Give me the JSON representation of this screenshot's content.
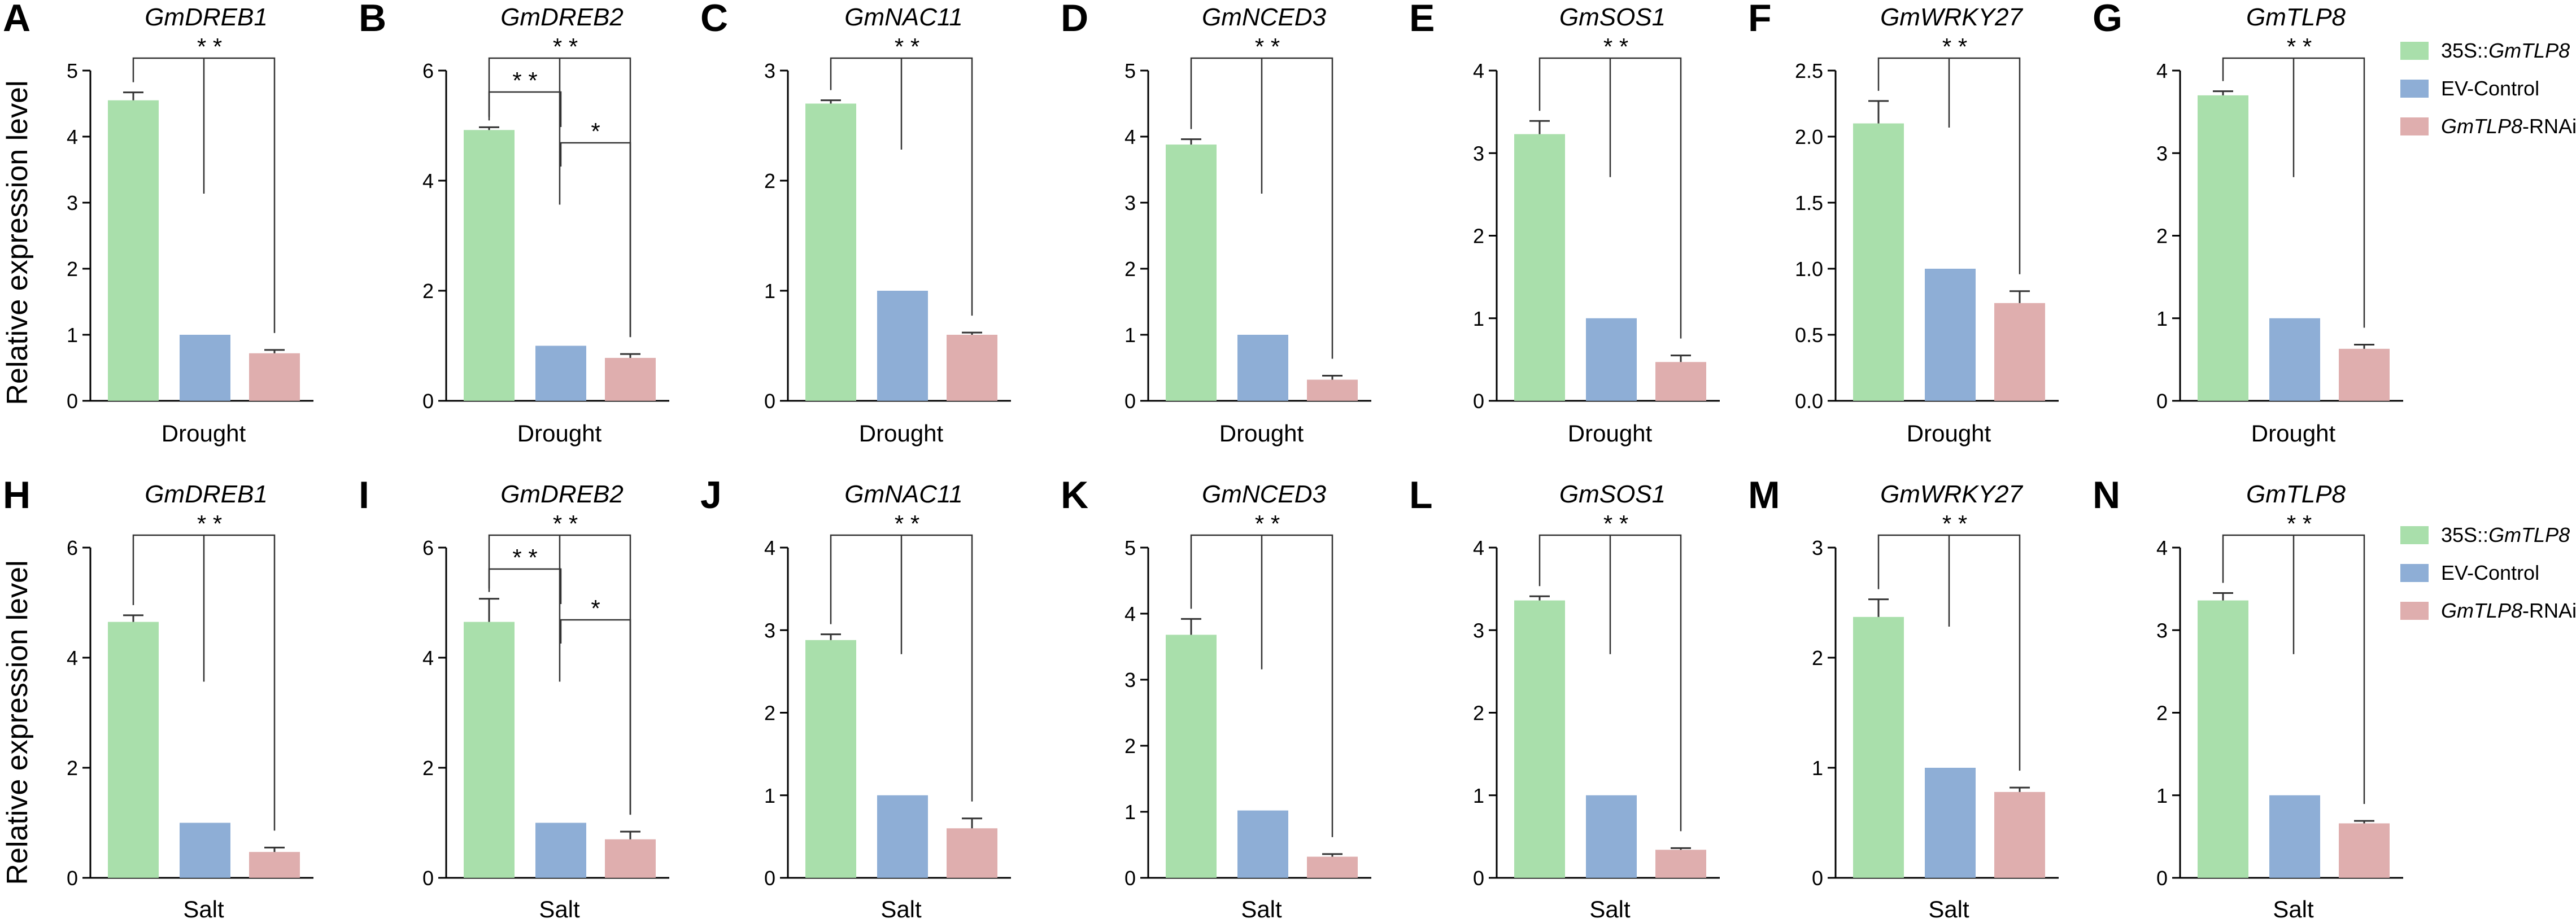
{
  "figure": {
    "y_axis_label": "Relative expression level",
    "legend": [
      {
        "prefix": "35S::",
        "gene": "GmTLP8",
        "suffix": "",
        "color": "#a9dfab"
      },
      {
        "prefix": "",
        "gene": "",
        "suffix": "EV-Control",
        "color": "#8eaed6"
      },
      {
        "prefix": "",
        "gene": "GmTLP8",
        "suffix": "-RNAi",
        "color": "#dfaeae"
      }
    ]
  },
  "chart_data": [
    {
      "panel": "A",
      "title": "GmDREB1",
      "type": "bar",
      "xlabel": "Drought",
      "ylim": [
        0,
        5
      ],
      "yticks": [
        "0",
        "1",
        "2",
        "3",
        "4",
        "5"
      ],
      "series": [
        {
          "name": "35S::GmTLP8",
          "values": [
            4.55
          ],
          "error": [
            0.12
          ]
        },
        {
          "name": "EV-Control",
          "values": [
            1.0
          ],
          "error": [
            0
          ]
        },
        {
          "name": "GmTLP8-RNAi",
          "values": [
            0.72
          ],
          "error": [
            0.05
          ]
        }
      ],
      "sig": [
        {
          "from": 0,
          "to": 2,
          "label": "* *"
        }
      ]
    },
    {
      "panel": "B",
      "title": "GmDREB2",
      "type": "bar",
      "xlabel": "Drought",
      "ylim": [
        0,
        6
      ],
      "yticks": [
        "0",
        "2",
        "4",
        "6"
      ],
      "series": [
        {
          "name": "35S::GmTLP8",
          "values": [
            4.92
          ],
          "error": [
            0.05
          ]
        },
        {
          "name": "EV-Control",
          "values": [
            1.0
          ],
          "error": [
            0
          ]
        },
        {
          "name": "GmTLP8-RNAi",
          "values": [
            0.78
          ],
          "error": [
            0.07
          ]
        }
      ],
      "sig": [
        {
          "from": 0,
          "to": 2,
          "label": "* *"
        },
        {
          "from": 0,
          "to": 1,
          "label": "* *"
        },
        {
          "from": 1,
          "to": 2,
          "label": "*"
        }
      ]
    },
    {
      "panel": "C",
      "title": "GmNAC11",
      "type": "bar",
      "xlabel": "Drought",
      "ylim": [
        0,
        3
      ],
      "yticks": [
        "0",
        "1",
        "2",
        "3"
      ],
      "series": [
        {
          "name": "35S::GmTLP8",
          "values": [
            2.7
          ],
          "error": [
            0.03
          ]
        },
        {
          "name": "EV-Control",
          "values": [
            1.0
          ],
          "error": [
            0
          ]
        },
        {
          "name": "GmTLP8-RNAi",
          "values": [
            0.6
          ],
          "error": [
            0.02
          ]
        }
      ],
      "sig": [
        {
          "from": 0,
          "to": 2,
          "label": "* *"
        }
      ]
    },
    {
      "panel": "D",
      "title": "GmNCED3",
      "type": "bar",
      "xlabel": "Drought",
      "ylim": [
        0,
        5
      ],
      "yticks": [
        "0",
        "1",
        "2",
        "3",
        "4",
        "5"
      ],
      "series": [
        {
          "name": "35S::GmTLP8",
          "values": [
            3.88
          ],
          "error": [
            0.08
          ]
        },
        {
          "name": "EV-Control",
          "values": [
            1.0
          ],
          "error": [
            0
          ]
        },
        {
          "name": "GmTLP8-RNAi",
          "values": [
            0.32
          ],
          "error": [
            0.06
          ]
        }
      ],
      "sig": [
        {
          "from": 0,
          "to": 2,
          "label": "* *"
        }
      ]
    },
    {
      "panel": "E",
      "title": "GmSOS1",
      "type": "bar",
      "xlabel": "Drought",
      "ylim": [
        0,
        4
      ],
      "yticks": [
        "0",
        "1",
        "2",
        "3",
        "4"
      ],
      "series": [
        {
          "name": "35S::GmTLP8",
          "values": [
            3.23
          ],
          "error": [
            0.16
          ]
        },
        {
          "name": "EV-Control",
          "values": [
            1.0
          ],
          "error": [
            0
          ]
        },
        {
          "name": "GmTLP8-RNAi",
          "values": [
            0.47
          ],
          "error": [
            0.08
          ]
        }
      ],
      "sig": [
        {
          "from": 0,
          "to": 2,
          "label": "* *"
        }
      ]
    },
    {
      "panel": "F",
      "title": "GmWRKY27",
      "type": "bar",
      "xlabel": "Drought",
      "ylim": [
        0,
        2.5
      ],
      "yticks": [
        "0.0",
        "0.5",
        "1.0",
        "1.5",
        "2.0",
        "2.5"
      ],
      "series": [
        {
          "name": "35S::GmTLP8",
          "values": [
            2.1
          ],
          "error": [
            0.17
          ]
        },
        {
          "name": "EV-Control",
          "values": [
            1.0
          ],
          "error": [
            0
          ]
        },
        {
          "name": "GmTLP8-RNAi",
          "values": [
            0.74
          ],
          "error": [
            0.09
          ]
        }
      ],
      "sig": [
        {
          "from": 0,
          "to": 2,
          "label": "* *"
        }
      ]
    },
    {
      "panel": "G",
      "title": "GmTLP8",
      "type": "bar",
      "xlabel": "Drought",
      "ylim": [
        0,
        4
      ],
      "yticks": [
        "0",
        "1",
        "2",
        "3",
        "4"
      ],
      "series": [
        {
          "name": "35S::GmTLP8",
          "values": [
            3.7
          ],
          "error": [
            0.05
          ]
        },
        {
          "name": "EV-Control",
          "values": [
            1.0
          ],
          "error": [
            0
          ]
        },
        {
          "name": "GmTLP8-RNAi",
          "values": [
            0.63
          ],
          "error": [
            0.05
          ]
        }
      ],
      "sig": [
        {
          "from": 0,
          "to": 2,
          "label": "* *"
        }
      ]
    },
    {
      "panel": "H",
      "title": "GmDREB1",
      "type": "bar",
      "xlabel": "Salt",
      "ylim": [
        0,
        6
      ],
      "yticks": [
        "0",
        "2",
        "4",
        "6"
      ],
      "series": [
        {
          "name": "35S::GmTLP8",
          "values": [
            4.65
          ],
          "error": [
            0.12
          ]
        },
        {
          "name": "EV-Control",
          "values": [
            1.0
          ],
          "error": [
            0
          ]
        },
        {
          "name": "GmTLP8-RNAi",
          "values": [
            0.47
          ],
          "error": [
            0.08
          ]
        }
      ],
      "sig": [
        {
          "from": 0,
          "to": 2,
          "label": "* *"
        }
      ]
    },
    {
      "panel": "I",
      "title": "GmDREB2",
      "type": "bar",
      "xlabel": "Salt",
      "ylim": [
        0,
        6
      ],
      "yticks": [
        "0",
        "2",
        "4",
        "6"
      ],
      "series": [
        {
          "name": "35S::GmTLP8",
          "values": [
            4.65
          ],
          "error": [
            0.42
          ]
        },
        {
          "name": "EV-Control",
          "values": [
            1.0
          ],
          "error": [
            0
          ]
        },
        {
          "name": "GmTLP8-RNAi",
          "values": [
            0.7
          ],
          "error": [
            0.14
          ]
        }
      ],
      "sig": [
        {
          "from": 0,
          "to": 2,
          "label": "* *"
        },
        {
          "from": 0,
          "to": 1,
          "label": "* *"
        },
        {
          "from": 1,
          "to": 2,
          "label": "*"
        }
      ]
    },
    {
      "panel": "J",
      "title": "GmNAC11",
      "type": "bar",
      "xlabel": "Salt",
      "ylim": [
        0,
        4
      ],
      "yticks": [
        "0",
        "1",
        "2",
        "3",
        "4"
      ],
      "series": [
        {
          "name": "35S::GmTLP8",
          "values": [
            2.88
          ],
          "error": [
            0.07
          ]
        },
        {
          "name": "EV-Control",
          "values": [
            1.0
          ],
          "error": [
            0
          ]
        },
        {
          "name": "GmTLP8-RNAi",
          "values": [
            0.6
          ],
          "error": [
            0.12
          ]
        }
      ],
      "sig": [
        {
          "from": 0,
          "to": 2,
          "label": "* *"
        }
      ]
    },
    {
      "panel": "K",
      "title": "GmNCED3",
      "type": "bar",
      "xlabel": "Salt",
      "ylim": [
        0,
        5
      ],
      "yticks": [
        "0",
        "1",
        "2",
        "3",
        "4",
        "5"
      ],
      "series": [
        {
          "name": "35S::GmTLP8",
          "values": [
            3.68
          ],
          "error": [
            0.24
          ]
        },
        {
          "name": "EV-Control",
          "values": [
            1.02
          ],
          "error": [
            0
          ]
        },
        {
          "name": "GmTLP8-RNAi",
          "values": [
            0.32
          ],
          "error": [
            0.04
          ]
        }
      ],
      "sig": [
        {
          "from": 0,
          "to": 2,
          "label": "* *"
        }
      ]
    },
    {
      "panel": "L",
      "title": "GmSOS1",
      "type": "bar",
      "xlabel": "Salt",
      "ylim": [
        0,
        4
      ],
      "yticks": [
        "0",
        "1",
        "2",
        "3",
        "4"
      ],
      "series": [
        {
          "name": "35S::GmTLP8",
          "values": [
            3.36
          ],
          "error": [
            0.05
          ]
        },
        {
          "name": "EV-Control",
          "values": [
            1.0
          ],
          "error": [
            0
          ]
        },
        {
          "name": "GmTLP8-RNAi",
          "values": [
            0.34
          ],
          "error": [
            0.02
          ]
        }
      ],
      "sig": [
        {
          "from": 0,
          "to": 2,
          "label": "* *"
        }
      ]
    },
    {
      "panel": "M",
      "title": "GmWRKY27",
      "type": "bar",
      "xlabel": "Salt",
      "ylim": [
        0,
        3
      ],
      "yticks": [
        "0",
        "1",
        "2",
        "3"
      ],
      "series": [
        {
          "name": "35S::GmTLP8",
          "values": [
            2.37
          ],
          "error": [
            0.16
          ]
        },
        {
          "name": "EV-Control",
          "values": [
            1.0
          ],
          "error": [
            0
          ]
        },
        {
          "name": "GmTLP8-RNAi",
          "values": [
            0.78
          ],
          "error": [
            0.04
          ]
        }
      ],
      "sig": [
        {
          "from": 0,
          "to": 2,
          "label": "* *"
        }
      ]
    },
    {
      "panel": "N",
      "title": "GmTLP8",
      "type": "bar",
      "xlabel": "Salt",
      "ylim": [
        0,
        4
      ],
      "yticks": [
        "0",
        "1",
        "2",
        "3",
        "4"
      ],
      "series": [
        {
          "name": "35S::GmTLP8",
          "values": [
            3.36
          ],
          "error": [
            0.09
          ]
        },
        {
          "name": "EV-Control",
          "values": [
            1.0
          ],
          "error": [
            0
          ]
        },
        {
          "name": "GmTLP8-RNAi",
          "values": [
            0.66
          ],
          "error": [
            0.03
          ]
        }
      ],
      "sig": [
        {
          "from": 0,
          "to": 2,
          "label": "* *"
        }
      ]
    }
  ]
}
